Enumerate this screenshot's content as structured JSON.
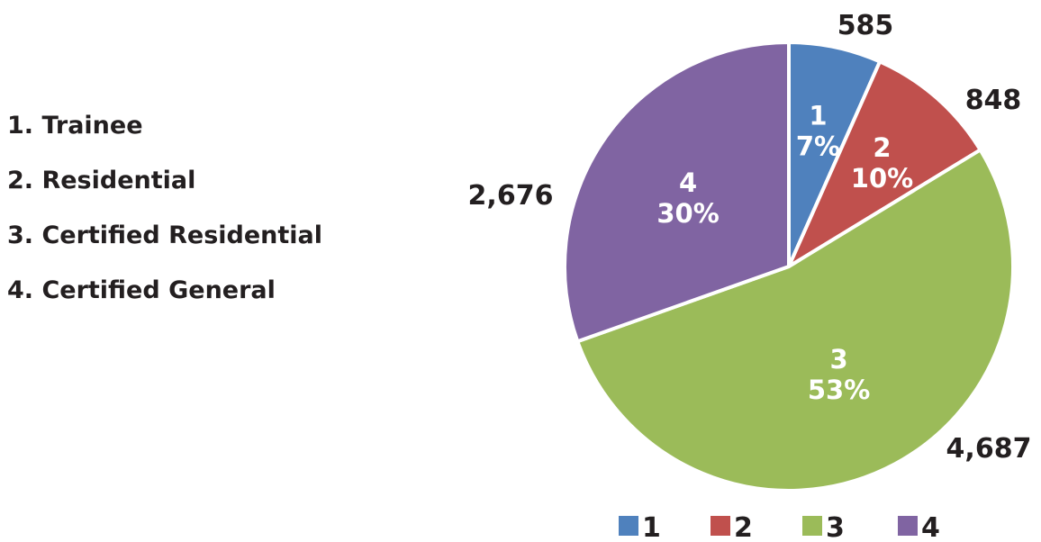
{
  "category_list": [
    {
      "label": "1. Trainee"
    },
    {
      "label": "2. Residential"
    },
    {
      "label": "3. Certified Residential"
    },
    {
      "label": "4. Certified General"
    }
  ],
  "chart_data": {
    "type": "pie",
    "legend_position": "bottom",
    "slices": [
      {
        "name": "1",
        "value": 585,
        "value_label": "585",
        "percent_label": "7%",
        "color": "#4f81bd"
      },
      {
        "name": "2",
        "value": 848,
        "value_label": "848",
        "percent_label": "10%",
        "color": "#c0504d"
      },
      {
        "name": "3",
        "value": 4687,
        "value_label": "4,687",
        "percent_label": "53%",
        "color": "#9bbb59"
      },
      {
        "name": "4",
        "value": 2676,
        "value_label": "2,676",
        "percent_label": "30%",
        "color": "#8064a2"
      }
    ]
  }
}
